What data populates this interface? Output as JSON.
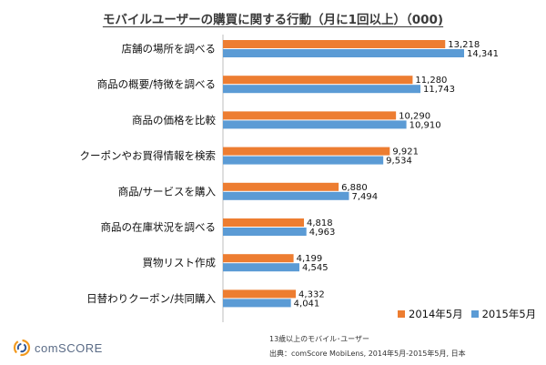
{
  "chart_data": {
    "type": "bar",
    "orientation": "horizontal",
    "title": "モバイルユーザーの購買に関する行動（月に1回以上）（000)",
    "categories": [
      "店舗の場所を調べる",
      "商品の概要/特徴を調べる",
      "商品の価格を比較",
      "クーポンやお買得情報を検索",
      "商品/サービスを購入",
      "商品の在庫状況を調べる",
      "買物リスト作成",
      "日替わりクーポン/共同購入"
    ],
    "series": [
      {
        "name": "2014年5月",
        "color": "#ed7d31",
        "values": [
          13218,
          11280,
          10290,
          9921,
          6880,
          4818,
          4199,
          4332
        ],
        "labels": [
          "13,218",
          "11,280",
          "10,290",
          "9,921",
          "6,880",
          "4,818",
          "4,199",
          "4,332"
        ]
      },
      {
        "name": "2015年5月",
        "color": "#5b9bd5",
        "values": [
          14341,
          11743,
          10910,
          9534,
          7494,
          4963,
          4545,
          4041
        ],
        "labels": [
          "14,341",
          "11,743",
          "10,910",
          "9,534",
          "7,494",
          "4,963",
          "4,545",
          "4,041"
        ]
      }
    ],
    "xlim": [
      0,
      14341
    ],
    "grid": false,
    "legend_position": "bottom-right"
  },
  "footnote": {
    "line1": "13歳以上のモバイル･ユーザー",
    "line2": "出典：comScore MobiLens, 2014年5月-2015年5月, 日本"
  },
  "logo": {
    "text": "comSCORE",
    "icon": "comscore-swirl-icon"
  }
}
